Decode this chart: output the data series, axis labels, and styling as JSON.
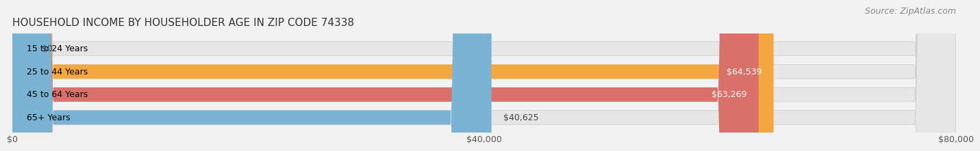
{
  "title": "HOUSEHOLD INCOME BY HOUSEHOLDER AGE IN ZIP CODE 74338",
  "source": "Source: ZipAtlas.com",
  "categories": [
    "15 to 24 Years",
    "25 to 44 Years",
    "45 to 64 Years",
    "65+ Years"
  ],
  "values": [
    0,
    64539,
    63269,
    40625
  ],
  "bar_colors": [
    "#f08080",
    "#f5a742",
    "#d9706a",
    "#7ab3d4"
  ],
  "xlim": [
    0,
    80000
  ],
  "xticks": [
    0,
    40000,
    80000
  ],
  "xtick_labels": [
    "$0",
    "$40,000",
    "$80,000"
  ],
  "background_color": "#f2f2f2",
  "bar_background_color": "#e6e6e6",
  "title_fontsize": 11,
  "source_fontsize": 9,
  "tick_fontsize": 9,
  "label_fontsize": 9,
  "bar_height": 0.62,
  "figsize": [
    14.06,
    2.33
  ]
}
